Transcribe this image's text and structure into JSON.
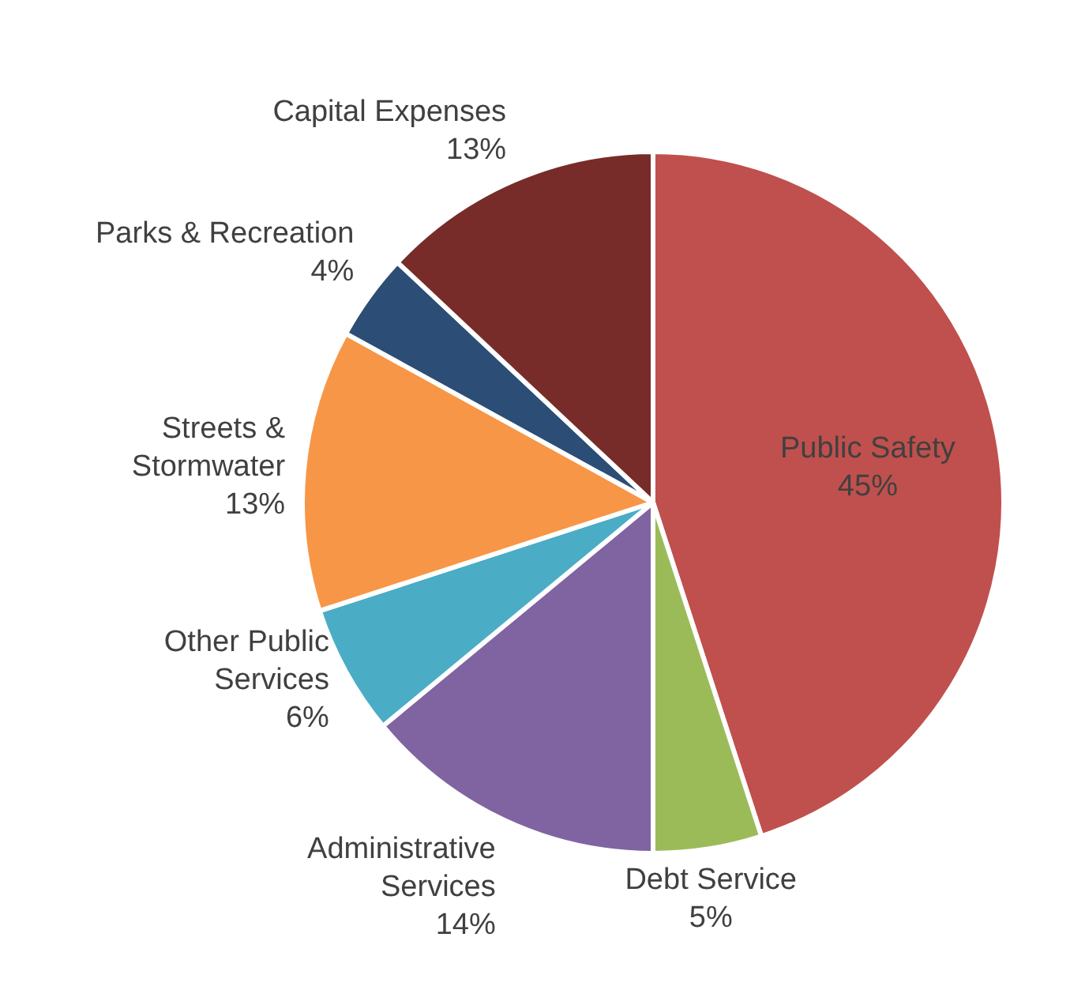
{
  "chart_data": {
    "type": "pie",
    "categories": [
      "Public Safety",
      "Debt Service",
      "Administrative Services",
      "Other Public Services",
      "Streets & Stormwater",
      "Parks & Recreation",
      "Capital Expenses"
    ],
    "values": [
      45,
      5,
      14,
      6,
      13,
      4,
      13
    ],
    "value_labels": [
      "45%",
      "5%",
      "14%",
      "6%",
      "13%",
      "4%",
      "13%"
    ],
    "colors": [
      "#c0504d",
      "#9bbb59",
      "#8064a2",
      "#4bacc6",
      "#f79646",
      "#2c4d75",
      "#772c2a"
    ],
    "legend": false
  }
}
